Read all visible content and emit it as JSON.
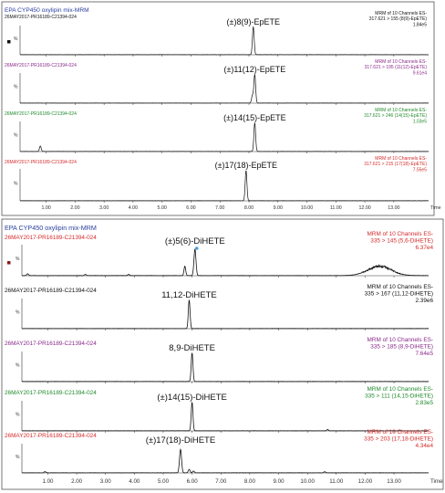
{
  "colors": {
    "title": "#2a3f9e",
    "black": "#111111",
    "purple": "#8a2a8a",
    "green": "#1f8a2a",
    "red": "#d62a2a",
    "trace": "#111111",
    "legend_marker": "#8a1a1a",
    "peak_marker": "#4aa0e0"
  },
  "panels": [
    {
      "title": "EPA CYP450 oxylipin mix-MRM",
      "time_label": "Time",
      "x_range": [
        0.1,
        14.2
      ],
      "ticks": [
        "1.00",
        "2.00",
        "3.00",
        "4.00",
        "5.00",
        "6.00",
        "7.00",
        "8.00",
        "9.00",
        "10.00",
        "11.00",
        "12.00",
        "13.00"
      ],
      "tick_values": [
        1,
        2,
        3,
        4,
        5,
        6,
        7,
        8,
        9,
        10,
        11,
        12,
        13
      ],
      "traces": [
        {
          "sample": "26MAY2017-PR16189-C21394-024",
          "color": "black",
          "info": [
            "MRM of 10 Channels ES-",
            "317.621 > 155 (8(9)-EpETE)",
            "1.84e5"
          ],
          "compound": "(±)8(9)-EpETE",
          "peak_rt": 8.15,
          "peak_width": 0.03,
          "peak_height": 0.95,
          "spikes": [],
          "hump": null
        },
        {
          "sample": "26MAY2017-PR16189-C21394-024",
          "color": "purple",
          "info": [
            "MRM of 10 Channels ES-",
            "317.621 > 195 (11(12)-EpETE)",
            "9.61e4"
          ],
          "compound": "(±)11(12)-EpETE",
          "peak_rt": 8.2,
          "peak_width": 0.03,
          "peak_height": 0.95,
          "spikes": [
            [
              8.12,
              0.25
            ]
          ],
          "hump": null
        },
        {
          "sample": "26MAY2017-PR16189-C21394-024",
          "color": "green",
          "info": [
            "MRM of 10 Channels ES-",
            "317.621 > 246 (14(15)-EpETE)",
            "1.03e5"
          ],
          "compound": "(±)14(15)-EpETE",
          "peak_rt": 8.2,
          "peak_width": 0.03,
          "peak_height": 0.95,
          "spikes": [
            [
              0.8,
              0.18
            ]
          ],
          "hump": null
        },
        {
          "sample": "26MAY2017-PR16189-C21394-024",
          "color": "red",
          "info": [
            "MRM of 10 Channels ES-",
            "317.621 > 215 (17(18)-EpETE)",
            "7.55e5"
          ],
          "compound": "(±)17(18)-EpETE",
          "peak_rt": 7.9,
          "peak_width": 0.03,
          "peak_height": 0.95,
          "spikes": [],
          "hump": null
        }
      ]
    },
    {
      "title": "EPA CYP450 oxylipin mix-MRM",
      "time_label": "Time",
      "x_range": [
        0.1,
        14.2
      ],
      "ticks": [
        "1.00",
        "2.00",
        "3.00",
        "4.00",
        "5.00",
        "6.00",
        "7.00",
        "8.00",
        "9.00",
        "10.00",
        "11.00",
        "12.00",
        "13.00"
      ],
      "tick_values": [
        1,
        2,
        3,
        4,
        5,
        6,
        7,
        8,
        9,
        10,
        11,
        12,
        13
      ],
      "traces": [
        {
          "sample": "26MAY2017-PR16189-C21394-024",
          "color": "red",
          "info": [
            "MRM of 10 Channels ES-",
            "335 > 145 (5,6-DiHETE)",
            "6.37e4"
          ],
          "compound": "(±)5(6)-DiHETE",
          "peak_rt": 6.1,
          "peak_width": 0.035,
          "peak_height": 0.85,
          "spikes": [
            [
              5.75,
              0.3
            ],
            [
              0.3,
              0.06
            ],
            [
              2.3,
              0.04
            ],
            [
              3.8,
              0.04
            ]
          ],
          "hump": [
            12.5,
            0.55,
            0.4
          ]
        },
        {
          "sample": "26MAY2017-PR16189-C21394-024",
          "color": "black",
          "info": [
            "MRM of 10 Channels ES-",
            "335 > 167 (11,12-DiHETE)",
            "2.39e6"
          ],
          "compound": "11,12-DiHETE",
          "peak_rt": 5.9,
          "peak_width": 0.03,
          "peak_height": 0.95,
          "spikes": [],
          "hump": null
        },
        {
          "sample": "26MAY2017-PR16189-C21394-024",
          "color": "purple",
          "info": [
            "MRM of 10 Channels ES-",
            "335 > 185 (8,9-DiHETE)",
            "7.64e5"
          ],
          "compound": "8,9-DiHETE",
          "peak_rt": 6.0,
          "peak_width": 0.03,
          "peak_height": 0.95,
          "spikes": [],
          "hump": null
        },
        {
          "sample": "26MAY2017-PR16189-C21394-024",
          "color": "green",
          "info": [
            "MRM of 10 Channels ES-",
            "335 > 111 (14,15-DiHETE)",
            "2.83e5"
          ],
          "compound": "(±)14(15)-DiHETE",
          "peak_rt": 6.0,
          "peak_width": 0.03,
          "peak_height": 0.95,
          "spikes": [
            [
              10.7,
              0.04
            ]
          ],
          "hump": null
        },
        {
          "sample": "26MAY2017-PR16189-C21394-024",
          "color": "red",
          "info": [
            "MRM of 10 Channels ES-",
            "335 > 203 (17,18-DiHETE)",
            "4.34e4"
          ],
          "compound": "(±)17(18)-DiHETE",
          "peak_rt": 5.6,
          "peak_width": 0.035,
          "peak_height": 0.8,
          "spikes": [
            [
              5.9,
              0.12
            ],
            [
              6.05,
              0.06
            ],
            [
              0.9,
              0.04
            ],
            [
              10.6,
              0.04
            ]
          ],
          "hump": null
        }
      ]
    }
  ],
  "chart_data": [
    {
      "type": "line",
      "title": "EPA CYP450 oxylipin mix-MRM",
      "xlabel": "Time",
      "xlim": [
        0,
        14.2
      ],
      "series": [
        {
          "name": "(±)8(9)-EpETE",
          "peak_retention_time": 8.15,
          "max_intensity": "1.84e5"
        },
        {
          "name": "(±)11(12)-EpETE",
          "peak_retention_time": 8.2,
          "max_intensity": "9.61e4"
        },
        {
          "name": "(±)14(15)-EpETE",
          "peak_retention_time": 8.2,
          "max_intensity": "1.03e5"
        },
        {
          "name": "(±)17(18)-EpETE",
          "peak_retention_time": 7.9,
          "max_intensity": "7.55e5"
        }
      ]
    },
    {
      "type": "line",
      "title": "EPA CYP450 oxylipin mix-MRM",
      "xlabel": "Time",
      "xlim": [
        0,
        14.2
      ],
      "series": [
        {
          "name": "(±)5(6)-DiHETE",
          "peak_retention_time": 6.1,
          "max_intensity": "6.37e4"
        },
        {
          "name": "11,12-DiHETE",
          "peak_retention_time": 5.9,
          "max_intensity": "2.39e6"
        },
        {
          "name": "8,9-DiHETE",
          "peak_retention_time": 6.0,
          "max_intensity": "7.64e5"
        },
        {
          "name": "(±)14(15)-DiHETE",
          "peak_retention_time": 6.0,
          "max_intensity": "2.83e5"
        },
        {
          "name": "(±)17(18)-DiHETE",
          "peak_retention_time": 5.6,
          "max_intensity": "4.34e4"
        }
      ]
    }
  ]
}
